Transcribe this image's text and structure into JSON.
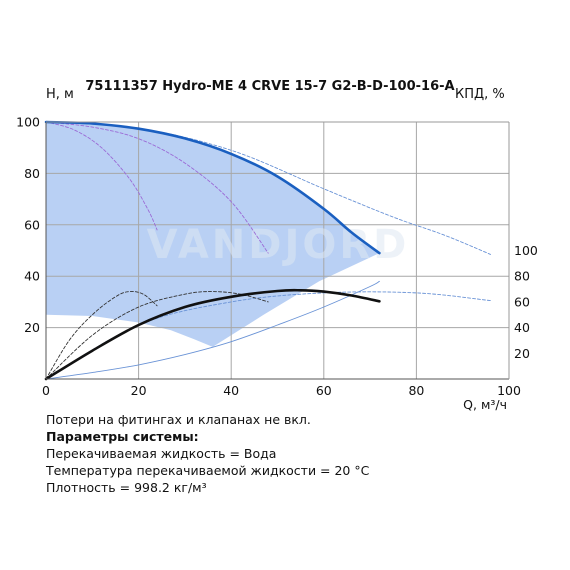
{
  "chart_data": {
    "type": "line",
    "title": "75111357 Hydro-ME 4 CRVE 15-7 G2-B-D-100-16-A",
    "ylabel_left": "H, м",
    "ylabel_right": "КПД, %",
    "xlabel": "Q, м³/ч",
    "watermark": "VANDJORD",
    "xlim": [
      0,
      100
    ],
    "ylim_left": [
      0,
      100
    ],
    "ylim_right": [
      0,
      200
    ],
    "x_ticks": [
      0,
      20,
      40,
      60,
      80,
      100
    ],
    "y_ticks_left": [
      20,
      40,
      60,
      80,
      100
    ],
    "y_ticks_right": [
      20,
      40,
      60,
      80,
      100
    ],
    "grid": true,
    "operating_area": {
      "upper_boundary": [
        [
          0,
          100
        ],
        [
          10,
          99.4
        ],
        [
          20,
          97.4
        ],
        [
          30,
          93.6
        ],
        [
          40,
          87.6
        ],
        [
          50,
          78.8
        ],
        [
          60,
          66.2
        ],
        [
          66,
          57
        ],
        [
          72,
          49
        ]
      ],
      "lower_boundary": [
        [
          0,
          25
        ],
        [
          10,
          24.5
        ],
        [
          20,
          22
        ],
        [
          27,
          19
        ],
        [
          32,
          15.5
        ],
        [
          36,
          12.5
        ],
        [
          47,
          25
        ],
        [
          59,
          38
        ],
        [
          72,
          49
        ]
      ]
    },
    "series": [
      {
        "role": "head_max",
        "color": "#1a5fc0",
        "points": [
          [
            0,
            100
          ],
          [
            10,
            99.4
          ],
          [
            20,
            97.4
          ],
          [
            30,
            93.6
          ],
          [
            40,
            87.6
          ],
          [
            50,
            78.8
          ],
          [
            60,
            66.2
          ],
          [
            66,
            57
          ],
          [
            72,
            49
          ]
        ]
      },
      {
        "role": "efficiency",
        "axis": "right",
        "color": "#111111",
        "points": [
          [
            0,
            0
          ],
          [
            10,
            22
          ],
          [
            20,
            42
          ],
          [
            30,
            56
          ],
          [
            40,
            64
          ],
          [
            50,
            68.5
          ],
          [
            55,
            69
          ],
          [
            60,
            68
          ],
          [
            66,
            65
          ],
          [
            72,
            60.5
          ]
        ]
      },
      {
        "role": "head_reduced_1",
        "color": "#9b6bd6",
        "points": [
          [
            0,
            100
          ],
          [
            6,
            97
          ],
          [
            12,
            90
          ],
          [
            18,
            78
          ],
          [
            22,
            66
          ],
          [
            24,
            58
          ]
        ]
      },
      {
        "role": "head_reduced_2",
        "color": "#9b6bd6",
        "points": [
          [
            0,
            100
          ],
          [
            10,
            98
          ],
          [
            20,
            93.5
          ],
          [
            30,
            84
          ],
          [
            40,
            69
          ],
          [
            48,
            49
          ]
        ]
      },
      {
        "role": "head_extended",
        "color": "#6a93d6",
        "points": [
          [
            0,
            100
          ],
          [
            20,
            97.5
          ],
          [
            40,
            89
          ],
          [
            60,
            74
          ],
          [
            75,
            63
          ],
          [
            86,
            56
          ],
          [
            96,
            48.5
          ]
        ]
      },
      {
        "role": "efficiency_reduced_1",
        "axis": "right",
        "color": "#333333",
        "points": [
          [
            0,
            0
          ],
          [
            5,
            30
          ],
          [
            10,
            50
          ],
          [
            15,
            64
          ],
          [
            18,
            68
          ],
          [
            21,
            66
          ],
          [
            24,
            57
          ]
        ]
      },
      {
        "role": "efficiency_reduced_2",
        "axis": "right",
        "color": "#333333",
        "points": [
          [
            0,
            0
          ],
          [
            10,
            34
          ],
          [
            20,
            56
          ],
          [
            30,
            66
          ],
          [
            36,
            68
          ],
          [
            42,
            66
          ],
          [
            48,
            60
          ]
        ]
      },
      {
        "role": "efficiency_extended",
        "axis": "right",
        "color": "#6a93d6",
        "points": [
          [
            0,
            0
          ],
          [
            20,
            42
          ],
          [
            40,
            60
          ],
          [
            60,
            67
          ],
          [
            80,
            67
          ],
          [
            96,
            61
          ]
        ]
      },
      {
        "role": "system_curve",
        "color": "#6a93d6",
        "points": [
          [
            0,
            0
          ],
          [
            10,
            2.5
          ],
          [
            20,
            5.5
          ],
          [
            30,
            9.5
          ],
          [
            40,
            14.5
          ],
          [
            50,
            21
          ],
          [
            60,
            28
          ],
          [
            70,
            36
          ],
          [
            72,
            38
          ]
        ]
      }
    ]
  },
  "notes": {
    "line1": "Потери на фитингах и клапанах не вкл.",
    "line2": "Параметры системы:",
    "line3": "Перекачиваемая жидкость = Вода",
    "line4": "Температура перекачиваемой жидкости = 20 °C",
    "line5": "Плотность = 998.2 кг/м³"
  }
}
